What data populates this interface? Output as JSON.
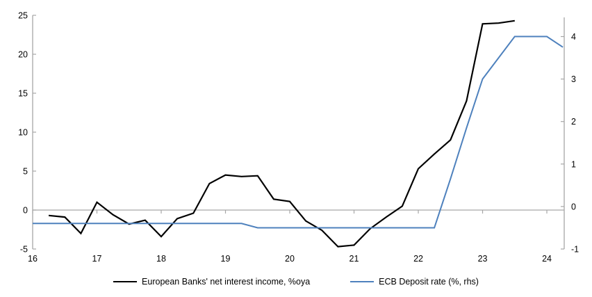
{
  "chart_data": {
    "type": "line",
    "title": "",
    "x_axis": {
      "range": [
        2016,
        2024.27
      ],
      "tick_values": [
        2016,
        2017,
        2018,
        2019,
        2020,
        2021,
        2022,
        2023,
        2024
      ],
      "tick_labels": [
        "16",
        "17",
        "18",
        "19",
        "20",
        "21",
        "22",
        "23",
        "24"
      ]
    },
    "left_axis": {
      "range": [
        -5,
        25
      ],
      "tick_values": [
        25,
        20,
        15,
        10,
        5,
        0,
        -5
      ],
      "tick_labels": [
        "25",
        "20",
        "15",
        "10",
        "5",
        "0",
        "-5"
      ]
    },
    "right_axis": {
      "range": [
        -1,
        4.5
      ],
      "tick_values": [
        4,
        3,
        2,
        1,
        0,
        -1
      ],
      "tick_labels": [
        "4",
        "3",
        "2",
        "1",
        "0",
        "-1"
      ]
    },
    "grid": "zero-line-only",
    "legend": {
      "position": "bottom"
    },
    "series": [
      {
        "name": "European Banks' net interest income, %oya",
        "axis": "left",
        "color": "#000000",
        "width": 2.2,
        "points": [
          [
            2016.25,
            -0.7
          ],
          [
            2016.5,
            -0.9
          ],
          [
            2016.75,
            -3.0
          ],
          [
            2017.0,
            1.0
          ],
          [
            2017.25,
            -0.6
          ],
          [
            2017.5,
            -1.8
          ],
          [
            2017.75,
            -1.3
          ],
          [
            2018.0,
            -3.4
          ],
          [
            2018.25,
            -1.1
          ],
          [
            2018.5,
            -0.4
          ],
          [
            2018.75,
            3.4
          ],
          [
            2019.0,
            4.5
          ],
          [
            2019.25,
            4.3
          ],
          [
            2019.5,
            4.4
          ],
          [
            2019.75,
            1.4
          ],
          [
            2020.0,
            1.1
          ],
          [
            2020.25,
            -1.4
          ],
          [
            2020.5,
            -2.6
          ],
          [
            2020.75,
            -4.7
          ],
          [
            2021.0,
            -4.5
          ],
          [
            2021.25,
            -2.4
          ],
          [
            2021.5,
            -0.9
          ],
          [
            2021.75,
            0.5
          ],
          [
            2022.0,
            5.3
          ],
          [
            2022.25,
            7.2
          ],
          [
            2022.5,
            9.0
          ],
          [
            2022.75,
            14.0
          ],
          [
            2023.0,
            23.9
          ],
          [
            2023.25,
            24.0
          ],
          [
            2023.5,
            24.3
          ]
        ]
      },
      {
        "name": "ECB Deposit rate (%, rhs)",
        "axis": "right",
        "color": "#4E81BD",
        "width": 2,
        "points": [
          [
            2016.0,
            -0.4
          ],
          [
            2016.25,
            -0.4
          ],
          [
            2016.5,
            -0.4
          ],
          [
            2016.75,
            -0.4
          ],
          [
            2017.0,
            -0.4
          ],
          [
            2017.25,
            -0.4
          ],
          [
            2017.5,
            -0.4
          ],
          [
            2017.75,
            -0.4
          ],
          [
            2018.0,
            -0.4
          ],
          [
            2018.25,
            -0.4
          ],
          [
            2018.5,
            -0.4
          ],
          [
            2018.75,
            -0.4
          ],
          [
            2019.0,
            -0.4
          ],
          [
            2019.25,
            -0.4
          ],
          [
            2019.5,
            -0.5
          ],
          [
            2019.75,
            -0.5
          ],
          [
            2020.0,
            -0.5
          ],
          [
            2020.25,
            -0.5
          ],
          [
            2020.5,
            -0.5
          ],
          [
            2020.75,
            -0.5
          ],
          [
            2021.0,
            -0.5
          ],
          [
            2021.25,
            -0.5
          ],
          [
            2021.5,
            -0.5
          ],
          [
            2021.75,
            -0.5
          ],
          [
            2022.0,
            -0.5
          ],
          [
            2022.25,
            -0.5
          ],
          [
            2022.5,
            0.65
          ],
          [
            2022.75,
            1.85
          ],
          [
            2023.0,
            3.0
          ],
          [
            2023.25,
            3.5
          ],
          [
            2023.5,
            4.0
          ],
          [
            2023.75,
            4.0
          ],
          [
            2024.0,
            4.0
          ],
          [
            2024.25,
            3.75
          ]
        ]
      }
    ],
    "colors": {
      "axis": "#A6A6A6",
      "zero_line": "#A6A6A6",
      "background": "#FFFFFF",
      "text": "#000000"
    }
  }
}
